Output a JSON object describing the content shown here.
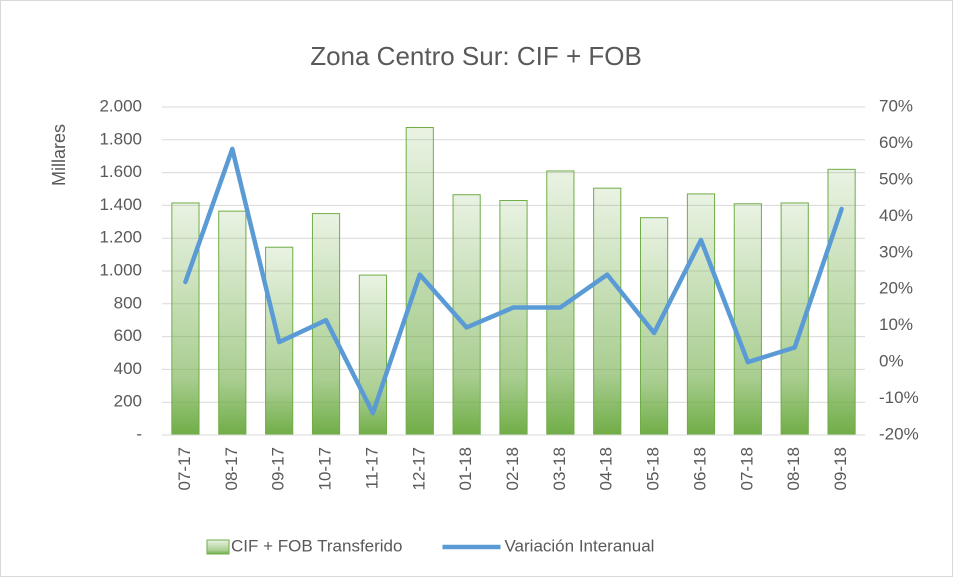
{
  "chart_data": {
    "type": "bar",
    "title": "Zona Centro Sur: CIF + FOB",
    "ylabel": "Millares",
    "categories": [
      "07-17",
      "08-17",
      "09-17",
      "10-17",
      "11-17",
      "12-17",
      "01-18",
      "02-18",
      "03-18",
      "04-18",
      "05-18",
      "06-18",
      "07-18",
      "08-18",
      "09-18"
    ],
    "series": [
      {
        "name": "CIF + FOB Transferido",
        "type": "bar",
        "color": "#70ad47",
        "values": [
          1415,
          1365,
          1145,
          1350,
          975,
          1875,
          1465,
          1430,
          1610,
          1505,
          1325,
          1470,
          1410,
          1415,
          1620
        ]
      },
      {
        "name": "Variación Interanual",
        "type": "line",
        "axis": "y2",
        "color": "#5b9bd5",
        "values": [
          22,
          58.5,
          5.5,
          11.5,
          -14,
          24,
          9.5,
          15,
          15,
          24,
          8,
          33.5,
          0,
          4,
          42
        ]
      }
    ],
    "ylim": [
      0,
      2000
    ],
    "yticks": [
      {
        "value": 0,
        "label": "-"
      },
      200,
      400,
      600,
      800,
      {
        "value": 1000,
        "label": "1.000"
      },
      {
        "value": 1200,
        "label": "1.200"
      },
      {
        "value": 1400,
        "label": "1.400"
      },
      {
        "value": 1600,
        "label": "1.600"
      },
      {
        "value": 1800,
        "label": "1.800"
      },
      {
        "value": 2000,
        "label": "2.000"
      }
    ],
    "y2lim": [
      -20,
      70
    ],
    "y2ticks": [
      {
        "value": -20,
        "label": "-20%"
      },
      {
        "value": -10,
        "label": "-10%"
      },
      {
        "value": 0,
        "label": "0%"
      },
      {
        "value": 10,
        "label": "10%"
      },
      {
        "value": 20,
        "label": "20%"
      },
      {
        "value": 30,
        "label": "30%"
      },
      {
        "value": 40,
        "label": "40%"
      },
      {
        "value": 50,
        "label": "50%"
      },
      {
        "value": 60,
        "label": "60%"
      },
      {
        "value": 70,
        "label": "70%"
      }
    ],
    "grid": true,
    "legend": "bottom"
  }
}
